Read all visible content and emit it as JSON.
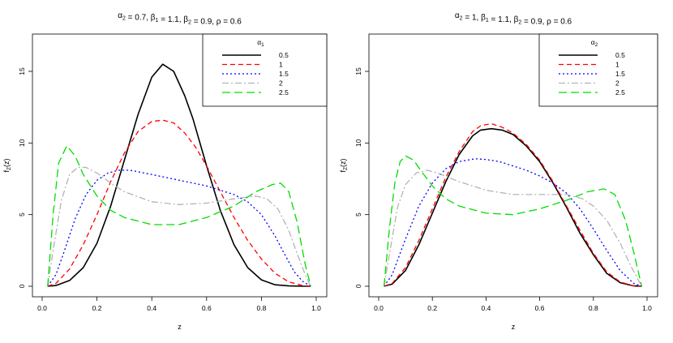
{
  "chart_data": [
    {
      "type": "line",
      "title": "α2 = 0.7, β1 = 1.1, β2 = 0.9, ρ = 0.6",
      "xlabel": "z",
      "ylabel": "fZ(z)",
      "xlim": [
        0,
        1
      ],
      "ylim": [
        0,
        17.5
      ],
      "xticks": [
        "0.0",
        "0.2",
        "0.4",
        "0.6",
        "0.8",
        "1.0"
      ],
      "yticks": [
        "0",
        "5",
        "10",
        "15"
      ],
      "legend": {
        "title": "α1",
        "position": "top-right"
      },
      "series": [
        {
          "name": "0.5",
          "color": "#000000",
          "dash": "solid",
          "x": [
            0.02,
            0.05,
            0.1,
            0.15,
            0.2,
            0.25,
            0.3,
            0.35,
            0.4,
            0.44,
            0.48,
            0.52,
            0.55,
            0.6,
            0.65,
            0.7,
            0.75,
            0.8,
            0.85,
            0.9,
            0.95,
            0.98
          ],
          "y": [
            0,
            0.05,
            0.4,
            1.3,
            3.0,
            5.6,
            8.8,
            12.0,
            14.6,
            15.5,
            15.0,
            13.3,
            11.7,
            8.4,
            5.3,
            2.9,
            1.3,
            0.45,
            0.1,
            0.02,
            0,
            0
          ]
        },
        {
          "name": "1",
          "color": "#ff0000",
          "dash": "6,4",
          "x": [
            0.02,
            0.05,
            0.1,
            0.15,
            0.2,
            0.25,
            0.3,
            0.35,
            0.4,
            0.44,
            0.48,
            0.52,
            0.56,
            0.6,
            0.65,
            0.7,
            0.75,
            0.8,
            0.85,
            0.9,
            0.95,
            0.98
          ],
          "y": [
            0,
            0.2,
            1.2,
            2.9,
            5.0,
            7.3,
            9.3,
            10.8,
            11.5,
            11.6,
            11.4,
            10.7,
            9.7,
            8.4,
            6.6,
            4.8,
            3.2,
            1.9,
            0.9,
            0.3,
            0.05,
            0
          ]
        },
        {
          "name": "1.5",
          "color": "#0000ff",
          "dash": "2,3",
          "x": [
            0.02,
            0.05,
            0.08,
            0.12,
            0.16,
            0.2,
            0.24,
            0.28,
            0.32,
            0.4,
            0.5,
            0.6,
            0.7,
            0.75,
            0.8,
            0.85,
            0.88,
            0.92,
            0.95,
            0.98
          ],
          "y": [
            0,
            0.8,
            2.4,
            4.7,
            6.4,
            7.4,
            7.9,
            8.1,
            8.1,
            7.8,
            7.4,
            7.0,
            6.4,
            5.9,
            5.0,
            3.5,
            2.4,
            1.0,
            0.35,
            0
          ]
        },
        {
          "name": "2",
          "color": "#b4b4b4",
          "dash": "8,3,2,3",
          "x": [
            0.02,
            0.04,
            0.07,
            0.1,
            0.13,
            0.16,
            0.2,
            0.25,
            0.3,
            0.4,
            0.5,
            0.6,
            0.7,
            0.78,
            0.82,
            0.86,
            0.9,
            0.93,
            0.96,
            0.98
          ],
          "y": [
            0,
            2.5,
            6.0,
            7.8,
            8.3,
            8.3,
            7.9,
            7.2,
            6.6,
            5.9,
            5.7,
            5.8,
            6.1,
            6.3,
            6.1,
            5.4,
            3.9,
            2.3,
            0.8,
            0
          ]
        },
        {
          "name": "2.5",
          "color": "#00dd00",
          "dash": "10,5",
          "x": [
            0.02,
            0.04,
            0.06,
            0.09,
            0.12,
            0.15,
            0.2,
            0.25,
            0.3,
            0.4,
            0.5,
            0.6,
            0.7,
            0.78,
            0.84,
            0.87,
            0.9,
            0.93,
            0.96,
            0.98
          ],
          "y": [
            0,
            5.0,
            8.6,
            9.8,
            9.1,
            7.8,
            6.3,
            5.3,
            4.8,
            4.3,
            4.3,
            4.8,
            5.6,
            6.6,
            7.1,
            7.2,
            6.6,
            4.5,
            1.5,
            0
          ]
        }
      ]
    },
    {
      "type": "line",
      "title": "α2 = 1, β1 = 1.1, β2 = 0.9, ρ = 0.6",
      "xlabel": "z",
      "ylabel": "fZ(z)",
      "xlim": [
        0,
        1
      ],
      "ylim": [
        0,
        17.5
      ],
      "xticks": [
        "0.0",
        "0.2",
        "0.4",
        "0.6",
        "0.8",
        "1.0"
      ],
      "yticks": [
        "0",
        "5",
        "10",
        "15"
      ],
      "legend": {
        "title": "α2",
        "position": "top-right"
      },
      "series": [
        {
          "name": "0.5",
          "color": "#000000",
          "dash": "solid",
          "x": [
            0.02,
            0.05,
            0.1,
            0.15,
            0.2,
            0.25,
            0.3,
            0.35,
            0.38,
            0.42,
            0.46,
            0.5,
            0.55,
            0.6,
            0.65,
            0.7,
            0.75,
            0.8,
            0.85,
            0.9,
            0.95,
            0.98
          ],
          "y": [
            0,
            0.15,
            1.1,
            2.9,
            5.1,
            7.3,
            9.2,
            10.5,
            10.9,
            11.0,
            10.9,
            10.6,
            9.8,
            8.7,
            7.2,
            5.5,
            3.7,
            2.2,
            0.9,
            0.25,
            0.02,
            0
          ]
        },
        {
          "name": "1",
          "color": "#ff0000",
          "dash": "6,4",
          "x": [
            0.02,
            0.05,
            0.1,
            0.15,
            0.2,
            0.25,
            0.3,
            0.35,
            0.38,
            0.42,
            0.46,
            0.5,
            0.55,
            0.6,
            0.65,
            0.7,
            0.75,
            0.8,
            0.85,
            0.9,
            0.95,
            0.98
          ],
          "y": [
            0,
            0.2,
            1.3,
            3.2,
            5.4,
            7.6,
            9.4,
            10.8,
            11.2,
            11.35,
            11.1,
            10.7,
            9.9,
            8.8,
            7.3,
            5.6,
            3.9,
            2.3,
            1.0,
            0.3,
            0.02,
            0
          ]
        },
        {
          "name": "1.5",
          "color": "#0000ff",
          "dash": "2,3",
          "x": [
            0.02,
            0.05,
            0.1,
            0.15,
            0.2,
            0.25,
            0.3,
            0.36,
            0.4,
            0.45,
            0.5,
            0.55,
            0.6,
            0.65,
            0.7,
            0.75,
            0.8,
            0.85,
            0.9,
            0.95,
            0.98
          ],
          "y": [
            0,
            0.8,
            3.3,
            5.6,
            7.2,
            8.2,
            8.7,
            8.9,
            8.85,
            8.7,
            8.4,
            8.1,
            7.7,
            7.2,
            6.5,
            5.4,
            4.0,
            2.5,
            1.1,
            0.2,
            0
          ]
        },
        {
          "name": "2",
          "color": "#b4b4b4",
          "dash": "8,3,2,3",
          "x": [
            0.02,
            0.04,
            0.07,
            0.1,
            0.14,
            0.18,
            0.22,
            0.3,
            0.4,
            0.5,
            0.6,
            0.7,
            0.76,
            0.8,
            0.85,
            0.9,
            0.94,
            0.98
          ],
          "y": [
            0,
            2.2,
            5.5,
            7.1,
            7.9,
            8.1,
            7.9,
            7.3,
            6.7,
            6.4,
            6.4,
            6.4,
            6.1,
            5.6,
            4.6,
            3.0,
            1.4,
            0
          ]
        },
        {
          "name": "2.5",
          "color": "#00dd00",
          "dash": "10,5",
          "x": [
            0.02,
            0.04,
            0.06,
            0.08,
            0.1,
            0.13,
            0.16,
            0.2,
            0.25,
            0.3,
            0.4,
            0.5,
            0.6,
            0.7,
            0.78,
            0.84,
            0.88,
            0.92,
            0.95,
            0.98
          ],
          "y": [
            0,
            4.0,
            7.2,
            8.7,
            9.1,
            8.8,
            8.0,
            7.0,
            6.1,
            5.6,
            5.1,
            5.0,
            5.4,
            6.0,
            6.6,
            6.8,
            6.4,
            4.6,
            2.4,
            0
          ]
        }
      ]
    }
  ]
}
